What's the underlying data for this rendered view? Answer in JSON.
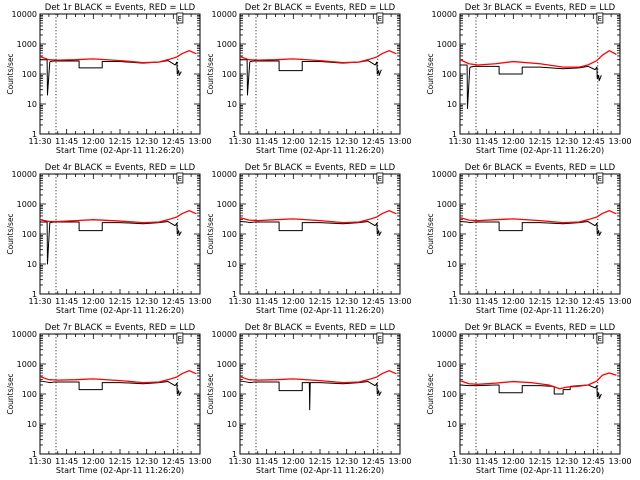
{
  "colors": {
    "events": "#000000",
    "lld": "#ff0000",
    "axes": "#000000",
    "background": "#ffffff"
  },
  "layout": {
    "rows": 3,
    "cols": 3
  },
  "common": {
    "ylabel": "Counts/sec",
    "xlabel": "Start Time (02-Apr-11 11:26:20)",
    "ytick_labels": [
      "1",
      "10",
      "100",
      "1000",
      "10000"
    ],
    "ytick_values": [
      1,
      10,
      100,
      1000,
      10000
    ],
    "xtick_labels": [
      "11:30",
      "11:45",
      "12:00",
      "12:15",
      "12:30",
      "12:45",
      "13:00"
    ],
    "xtick_values": [
      0,
      15,
      30,
      45,
      60,
      75,
      90
    ],
    "marker_label": "E"
  },
  "chart_data": [
    {
      "type": "line",
      "title": "Det 1r BLACK = Events, RED = LLD",
      "xlim": [
        0,
        90
      ],
      "ylim": [
        1,
        10000
      ],
      "yscale": "log",
      "vlines": [
        9,
        77.5
      ],
      "marker_x": 77,
      "series": [
        {
          "name": "LLD",
          "color": "#ff0000",
          "x": [
            0,
            5,
            10,
            20,
            30,
            45,
            58,
            67,
            72,
            77,
            80,
            84,
            88
          ],
          "y": [
            380,
            300,
            290,
            300,
            320,
            280,
            240,
            250,
            300,
            370,
            480,
            600,
            470
          ]
        },
        {
          "name": "Events",
          "color": "#000000",
          "x": [
            0,
            4,
            4.2,
            5.5,
            5.8,
            8,
            15,
            20,
            22,
            22,
            30,
            35,
            35,
            45,
            58,
            67,
            72,
            76,
            77,
            77.2,
            78,
            78.3,
            79.5
          ],
          "y": [
            300,
            300,
            20,
            250,
            260,
            270,
            270,
            270,
            270,
            160,
            160,
            160,
            260,
            260,
            230,
            250,
            280,
            200,
            250,
            100,
            130,
            90,
            120
          ]
        }
      ]
    },
    {
      "type": "line",
      "title": "Det 2r BLACK = Events, RED = LLD",
      "xlim": [
        0,
        90
      ],
      "ylim": [
        1,
        10000
      ],
      "yscale": "log",
      "vlines": [
        9,
        77.5
      ],
      "marker_x": 77,
      "series": [
        {
          "name": "LLD",
          "color": "#ff0000",
          "x": [
            0,
            5,
            10,
            20,
            30,
            45,
            58,
            67,
            72,
            77,
            80,
            84,
            88
          ],
          "y": [
            380,
            300,
            290,
            300,
            320,
            280,
            240,
            250,
            300,
            370,
            480,
            600,
            470
          ]
        },
        {
          "name": "Events",
          "color": "#000000",
          "x": [
            0,
            4,
            4.2,
            5.5,
            5.8,
            8,
            15,
            20,
            22,
            22,
            30,
            35,
            35,
            45,
            58,
            67,
            72,
            76,
            77,
            77.2,
            78,
            78.3,
            79.5
          ],
          "y": [
            300,
            300,
            20,
            250,
            260,
            270,
            270,
            270,
            270,
            130,
            130,
            130,
            260,
            260,
            230,
            250,
            280,
            200,
            250,
            100,
            130,
            90,
            140
          ]
        }
      ]
    },
    {
      "type": "line",
      "title": "Det 3r BLACK = Events, RED = LLD",
      "xlim": [
        0,
        90
      ],
      "ylim": [
        1,
        10000
      ],
      "yscale": "log",
      "vlines": [
        9,
        77.5
      ],
      "marker_x": 77,
      "series": [
        {
          "name": "LLD",
          "color": "#ff0000",
          "x": [
            0,
            5,
            10,
            20,
            30,
            45,
            58,
            67,
            72,
            77,
            80,
            84,
            88
          ],
          "y": [
            300,
            220,
            200,
            220,
            260,
            220,
            170,
            170,
            200,
            280,
            420,
            600,
            450
          ]
        },
        {
          "name": "Events",
          "color": "#000000",
          "x": [
            0,
            4,
            4.2,
            5.5,
            5.8,
            8,
            15,
            20,
            22,
            22,
            30,
            35,
            35,
            45,
            58,
            67,
            72,
            76,
            77,
            77.2,
            78,
            78.3,
            79.5
          ],
          "y": [
            200,
            200,
            7,
            160,
            170,
            180,
            180,
            180,
            180,
            100,
            100,
            100,
            170,
            170,
            150,
            160,
            180,
            140,
            170,
            70,
            90,
            60,
            90
          ]
        }
      ]
    },
    {
      "type": "line",
      "title": "Det 4r BLACK = Events, RED = LLD",
      "xlim": [
        0,
        90
      ],
      "ylim": [
        1,
        10000
      ],
      "yscale": "log",
      "vlines": [
        9,
        77.5
      ],
      "marker_x": 77,
      "series": [
        {
          "name": "LLD",
          "color": "#ff0000",
          "x": [
            0,
            5,
            10,
            20,
            30,
            45,
            58,
            67,
            72,
            77,
            80,
            84,
            88
          ],
          "y": [
            300,
            260,
            260,
            280,
            300,
            270,
            240,
            250,
            300,
            370,
            480,
            600,
            470
          ]
        },
        {
          "name": "Events",
          "color": "#000000",
          "x": [
            0,
            4,
            4.2,
            5.5,
            5.8,
            8,
            15,
            20,
            22,
            22,
            30,
            35,
            35,
            45,
            58,
            67,
            72,
            76,
            77,
            77.2,
            78,
            78.3,
            79.5
          ],
          "y": [
            250,
            250,
            10,
            230,
            240,
            250,
            250,
            250,
            250,
            130,
            130,
            130,
            240,
            240,
            220,
            240,
            260,
            190,
            230,
            100,
            130,
            90,
            120
          ]
        }
      ]
    },
    {
      "type": "line",
      "title": "Det 5r BLACK = Events, RED = LLD",
      "xlim": [
        0,
        90
      ],
      "ylim": [
        1,
        10000
      ],
      "yscale": "log",
      "vlines": [
        9,
        77.5
      ],
      "marker_x": 77,
      "series": [
        {
          "name": "LLD",
          "color": "#ff0000",
          "x": [
            0,
            5,
            10,
            20,
            30,
            45,
            58,
            67,
            72,
            77,
            80,
            84,
            88
          ],
          "y": [
            350,
            290,
            280,
            300,
            320,
            280,
            240,
            250,
            300,
            370,
            480,
            600,
            470
          ]
        },
        {
          "name": "Events",
          "color": "#000000",
          "x": [
            0,
            4,
            5.5,
            8,
            15,
            20,
            22,
            22,
            30,
            35,
            35,
            45,
            58,
            67,
            72,
            76,
            77,
            77.2,
            78,
            78.3,
            79.5
          ],
          "y": [
            260,
            250,
            240,
            250,
            250,
            250,
            250,
            130,
            130,
            130,
            240,
            240,
            220,
            240,
            260,
            190,
            230,
            100,
            130,
            90,
            120
          ]
        }
      ]
    },
    {
      "type": "line",
      "title": "Det 6r BLACK = Events, RED = LLD",
      "xlim": [
        0,
        90
      ],
      "ylim": [
        1,
        10000
      ],
      "yscale": "log",
      "vlines": [
        9,
        77.5
      ],
      "marker_x": 77,
      "series": [
        {
          "name": "LLD",
          "color": "#ff0000",
          "x": [
            0,
            5,
            10,
            20,
            30,
            45,
            58,
            67,
            72,
            77,
            80,
            84,
            88
          ],
          "y": [
            350,
            290,
            280,
            300,
            320,
            280,
            240,
            250,
            300,
            370,
            480,
            600,
            470
          ]
        },
        {
          "name": "Events",
          "color": "#000000",
          "x": [
            0,
            4,
            5.5,
            8,
            15,
            20,
            22,
            22,
            30,
            35,
            35,
            45,
            58,
            67,
            72,
            76,
            77,
            77.2,
            78,
            78.3,
            79.5
          ],
          "y": [
            260,
            250,
            240,
            250,
            250,
            250,
            250,
            130,
            130,
            130,
            240,
            240,
            220,
            240,
            260,
            190,
            230,
            100,
            130,
            90,
            120
          ]
        }
      ]
    },
    {
      "type": "line",
      "title": "Det 7r BLACK = Events, RED = LLD",
      "xlim": [
        0,
        90
      ],
      "ylim": [
        1,
        10000
      ],
      "yscale": "log",
      "vlines": [
        9,
        77.5
      ],
      "marker_x": 77,
      "series": [
        {
          "name": "LLD",
          "color": "#ff0000",
          "x": [
            0,
            5,
            10,
            20,
            30,
            45,
            58,
            67,
            72,
            77,
            80,
            84,
            88
          ],
          "y": [
            380,
            300,
            290,
            300,
            320,
            280,
            240,
            250,
            300,
            370,
            480,
            600,
            470
          ]
        },
        {
          "name": "Events",
          "color": "#000000",
          "x": [
            0,
            4,
            5.5,
            8,
            15,
            20,
            22,
            22,
            30,
            35,
            35,
            45,
            58,
            67,
            72,
            76,
            77,
            77.2,
            78,
            78.3,
            79.5
          ],
          "y": [
            270,
            250,
            240,
            250,
            250,
            250,
            250,
            140,
            140,
            140,
            240,
            240,
            220,
            240,
            260,
            190,
            230,
            100,
            130,
            90,
            120
          ]
        }
      ]
    },
    {
      "type": "line",
      "title": "Det 8r BLACK = Events, RED = LLD",
      "xlim": [
        0,
        90
      ],
      "ylim": [
        1,
        10000
      ],
      "yscale": "log",
      "vlines": [
        9,
        77.5
      ],
      "marker_x": 77,
      "series": [
        {
          "name": "LLD",
          "color": "#ff0000",
          "x": [
            0,
            5,
            10,
            20,
            30,
            45,
            58,
            67,
            72,
            77,
            80,
            84,
            88
          ],
          "y": [
            380,
            300,
            290,
            300,
            320,
            280,
            240,
            250,
            300,
            370,
            480,
            600,
            470
          ]
        },
        {
          "name": "Events",
          "color": "#000000",
          "x": [
            0,
            4,
            5.5,
            8,
            15,
            20,
            22,
            22,
            30,
            35,
            35,
            39,
            39.2,
            39.5,
            45,
            58,
            67,
            72,
            76,
            77,
            77.2,
            78,
            78.3,
            79.5
          ],
          "y": [
            270,
            250,
            240,
            250,
            250,
            250,
            250,
            130,
            130,
            130,
            240,
            240,
            30,
            240,
            240,
            220,
            240,
            260,
            190,
            230,
            100,
            130,
            90,
            120
          ]
        }
      ]
    },
    {
      "type": "line",
      "title": "Det 9r BLACK = Events, RED = LLD",
      "xlim": [
        0,
        90
      ],
      "ylim": [
        1,
        10000
      ],
      "yscale": "log",
      "vlines": [
        9,
        77.5
      ],
      "marker_x": 77,
      "series": [
        {
          "name": "LLD",
          "color": "#ff0000",
          "x": [
            0,
            5,
            10,
            20,
            30,
            40,
            50,
            56,
            60,
            66,
            72,
            77,
            80,
            84,
            88
          ],
          "y": [
            280,
            220,
            210,
            230,
            260,
            240,
            200,
            150,
            170,
            180,
            200,
            270,
            420,
            500,
            420
          ]
        },
        {
          "name": "Events",
          "color": "#000000",
          "x": [
            0,
            5,
            10,
            20,
            22,
            22,
            30,
            35,
            35,
            45,
            52,
            53,
            53,
            58,
            58,
            62,
            62,
            67,
            72,
            76,
            77,
            77.2,
            78,
            78.3,
            79.5
          ],
          "y": [
            200,
            190,
            190,
            200,
            200,
            110,
            110,
            110,
            190,
            190,
            180,
            180,
            100,
            100,
            140,
            140,
            180,
            190,
            200,
            160,
            190,
            80,
            110,
            70,
            100
          ]
        }
      ]
    }
  ]
}
